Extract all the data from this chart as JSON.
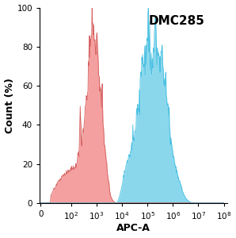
{
  "title": "DMC285",
  "xlabel": "APC-A",
  "ylabel": "Count (%)",
  "ylim": [
    0,
    100
  ],
  "yticks": [
    0,
    20,
    40,
    60,
    80,
    100
  ],
  "red_color": "#F28080",
  "red_edge_color": "#D05050",
  "blue_color": "#6DCDE8",
  "blue_edge_color": "#3ABBE0",
  "title_fontsize": 11,
  "label_fontsize": 9,
  "tick_fontsize": 7.5
}
